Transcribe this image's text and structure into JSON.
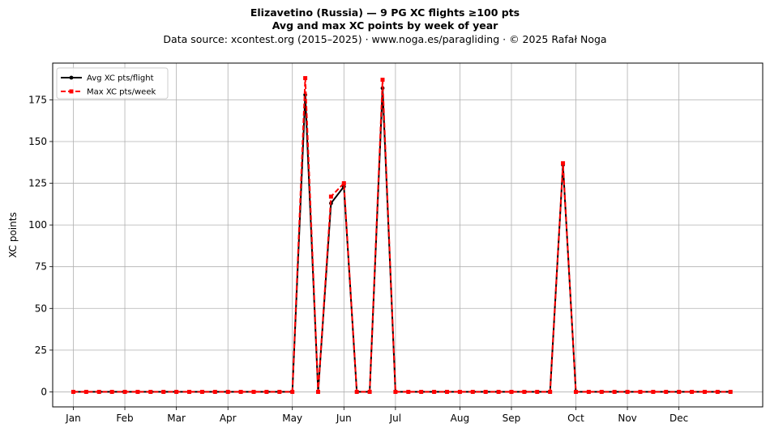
{
  "chart_data": {
    "type": "line",
    "title": "Elizavetino (Russia)  —  9 PG XC flights ≥100 pts",
    "subtitle": "Avg and max XC points by week of year",
    "source": "Data source: xcontest.org (2015–2025)  ·  www.noga.es/paragliding  ·  © 2025 Rafał Noga",
    "xlabel": "",
    "ylabel": "XC points",
    "x_weeks": [
      1,
      2,
      3,
      4,
      5,
      6,
      7,
      8,
      9,
      10,
      11,
      12,
      13,
      14,
      15,
      16,
      17,
      18,
      19,
      20,
      21,
      22,
      23,
      24,
      25,
      26,
      27,
      28,
      29,
      30,
      31,
      32,
      33,
      34,
      35,
      36,
      37,
      38,
      39,
      40,
      41,
      42,
      43,
      44,
      45,
      46,
      47,
      48,
      49,
      50,
      51,
      52
    ],
    "x_ticks": [
      {
        "label": "Jan",
        "week": 1
      },
      {
        "label": "Feb",
        "week": 5
      },
      {
        "label": "Mar",
        "week": 9
      },
      {
        "label": "Apr",
        "week": 13
      },
      {
        "label": "May",
        "week": 18
      },
      {
        "label": "Jun",
        "week": 22
      },
      {
        "label": "Jul",
        "week": 26
      },
      {
        "label": "Aug",
        "week": 31
      },
      {
        "label": "Sep",
        "week": 35
      },
      {
        "label": "Oct",
        "week": 40
      },
      {
        "label": "Nov",
        "week": 44
      },
      {
        "label": "Dec",
        "week": 48
      }
    ],
    "y_ticks": [
      0,
      25,
      50,
      75,
      100,
      125,
      150,
      175
    ],
    "xlim": [
      -0.6,
      54.5
    ],
    "ylim": [
      -9,
      197
    ],
    "grid": true,
    "legend_position": "top-left",
    "series": [
      {
        "name": "Avg XC pts/flight",
        "color": "#000000",
        "style": "solid-circle",
        "values": [
          0,
          0,
          0,
          0,
          0,
          0,
          0,
          0,
          0,
          0,
          0,
          0,
          0,
          0,
          0,
          0,
          0,
          0,
          178,
          0,
          113,
          123,
          0,
          0,
          182,
          0,
          0,
          0,
          0,
          0,
          0,
          0,
          0,
          0,
          0,
          0,
          0,
          0,
          136,
          0,
          0,
          0,
          0,
          0,
          0,
          0,
          0,
          0,
          0,
          0,
          0,
          0
        ]
      },
      {
        "name": "Max XC pts/week",
        "color": "#ff0000",
        "style": "dashed-square",
        "values": [
          0,
          0,
          0,
          0,
          0,
          0,
          0,
          0,
          0,
          0,
          0,
          0,
          0,
          0,
          0,
          0,
          0,
          0,
          188,
          0,
          117,
          125,
          0,
          0,
          187,
          0,
          0,
          0,
          0,
          0,
          0,
          0,
          0,
          0,
          0,
          0,
          0,
          0,
          137,
          0,
          0,
          0,
          0,
          0,
          0,
          0,
          0,
          0,
          0,
          0,
          0,
          0
        ]
      }
    ]
  }
}
